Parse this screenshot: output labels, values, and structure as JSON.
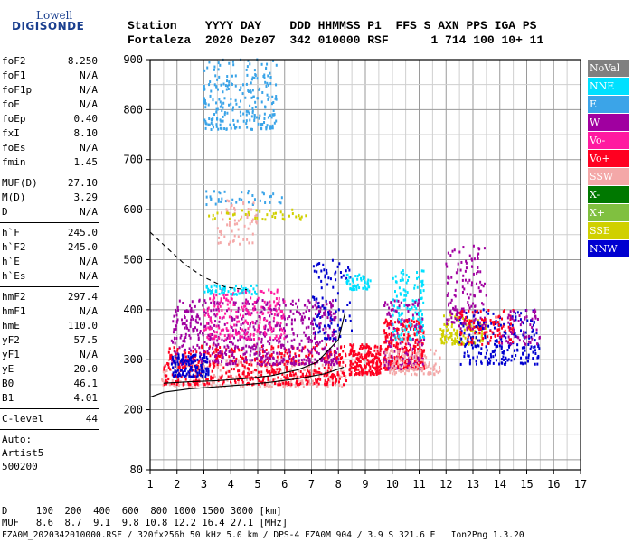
{
  "logo": {
    "line1": "Lowell",
    "line2": "DIGISONDE"
  },
  "header": {
    "line1": "Station    YYYY DAY    DDD HHMMSS P1  FFS S AXN PPS IGA PS",
    "line2": "Fortaleza  2020 Dez07  342 010000 RSF      1 714 100 10+ 11"
  },
  "params": {
    "group1": [
      {
        "name": "foF2",
        "value": "8.250"
      },
      {
        "name": "foF1",
        "value": "N/A"
      },
      {
        "name": "foF1p",
        "value": "N/A"
      },
      {
        "name": "foE",
        "value": "N/A"
      },
      {
        "name": "foEp",
        "value": "0.40"
      },
      {
        "name": "fxI",
        "value": "8.10"
      },
      {
        "name": "foEs",
        "value": "N/A"
      },
      {
        "name": "fmin",
        "value": "1.45"
      }
    ],
    "group2": [
      {
        "name": "MUF(D)",
        "value": "27.10"
      },
      {
        "name": "M(D)",
        "value": "3.29"
      },
      {
        "name": "D",
        "value": "N/A"
      }
    ],
    "group3": [
      {
        "name": "h`F",
        "value": "245.0"
      },
      {
        "name": "h`F2",
        "value": "245.0"
      },
      {
        "name": "h`E",
        "value": "N/A"
      },
      {
        "name": "h`Es",
        "value": "N/A"
      }
    ],
    "group4": [
      {
        "name": "hmF2",
        "value": "297.4"
      },
      {
        "name": "hmF1",
        "value": "N/A"
      },
      {
        "name": "hmE",
        "value": "110.0"
      },
      {
        "name": "yF2",
        "value": "57.5"
      },
      {
        "name": "yF1",
        "value": "N/A"
      },
      {
        "name": "yE",
        "value": "20.0"
      },
      {
        "name": "B0",
        "value": "46.1"
      },
      {
        "name": "B1",
        "value": "4.01"
      }
    ],
    "group5": [
      {
        "name": "C-level",
        "value": "44"
      }
    ]
  },
  "autoscale": {
    "line1": "Auto:",
    "line2": "Artist5",
    "line3": "500200"
  },
  "legend": [
    {
      "label": "NoVal",
      "color": "#808080"
    },
    {
      "label": "NNE",
      "color": "#00e0ff"
    },
    {
      "label": "E",
      "color": "#3ba4e8"
    },
    {
      "label": "W",
      "color": "#a000a0"
    },
    {
      "label": "Vo-",
      "color": "#ff1aa0"
    },
    {
      "label": "Vo+",
      "color": "#ff0020"
    },
    {
      "label": "SSW",
      "color": "#f4a8a8"
    },
    {
      "label": "X-",
      "color": "#007800"
    },
    {
      "label": "X+",
      "color": "#80c040"
    },
    {
      "label": "SSE",
      "color": "#d0d000"
    },
    {
      "label": "NNW",
      "color": "#0000d0"
    }
  ],
  "footer": {
    "line1": "D     100  200  400  600  800 1000 1500 3000 [km]",
    "line2": "MUF   8.6  8.7  9.1  9.8 10.8 12.2 16.4 27.1 [MHz]",
    "line3": "FZA0M_2020342010000.RSF / 320fx256h 50 kHz 5.0 km / DPS-4 FZA0M 904 / 3.9 S 321.6 E   Ion2Png 1.3.20"
  },
  "chart_data": {
    "type": "scatter",
    "xlim": [
      1,
      17
    ],
    "ylim": [
      80,
      900
    ],
    "x_ticks": [
      1,
      2,
      3,
      4,
      5,
      6,
      7,
      8,
      9,
      10,
      11,
      12,
      13,
      14,
      15,
      16,
      17
    ],
    "y_ticks": [
      80,
      200,
      300,
      400,
      500,
      600,
      700,
      800,
      900
    ],
    "x_unit": "MHz",
    "y_unit": "km",
    "grid": true,
    "clusters": [
      {
        "series": "SSW",
        "fmin": 1.4,
        "fmax": 8.3,
        "hmin": 245,
        "hmax": 300,
        "n": 260
      },
      {
        "series": "Vo+",
        "fmin": 1.5,
        "fmax": 8.3,
        "hmin": 250,
        "hmax": 330,
        "n": 520
      },
      {
        "series": "W",
        "fmin": 1.8,
        "fmax": 8.0,
        "hmin": 290,
        "hmax": 420,
        "n": 650
      },
      {
        "series": "NNW",
        "fmin": 1.8,
        "fmax": 3.2,
        "hmin": 265,
        "hmax": 310,
        "n": 130
      },
      {
        "series": "NNW",
        "fmin": 7.0,
        "fmax": 8.5,
        "hmin": 340,
        "hmax": 500,
        "n": 90
      },
      {
        "series": "Vo-",
        "fmin": 3.0,
        "fmax": 6.0,
        "hmin": 340,
        "hmax": 440,
        "n": 220
      },
      {
        "series": "NNE",
        "fmin": 3.0,
        "fmax": 5.0,
        "hmin": 430,
        "hmax": 450,
        "n": 60
      },
      {
        "series": "E",
        "fmin": 3.0,
        "fmax": 5.7,
        "hmin": 760,
        "hmax": 900,
        "n": 240
      },
      {
        "series": "E",
        "fmin": 3.0,
        "fmax": 6.0,
        "hmin": 610,
        "hmax": 640,
        "n": 40
      },
      {
        "series": "SSW",
        "fmin": 3.5,
        "fmax": 5.0,
        "hmin": 530,
        "hmax": 620,
        "n": 60
      },
      {
        "series": "SSE",
        "fmin": 3.0,
        "fmax": 6.8,
        "hmin": 580,
        "hmax": 600,
        "n": 40
      },
      {
        "series": "Vo+",
        "fmin": 8.4,
        "fmax": 9.6,
        "hmin": 270,
        "hmax": 330,
        "n": 200
      },
      {
        "series": "NNE",
        "fmin": 8.3,
        "fmax": 9.2,
        "hmin": 440,
        "hmax": 470,
        "n": 50
      },
      {
        "series": "Vo+",
        "fmin": 9.7,
        "fmax": 11.2,
        "hmin": 280,
        "hmax": 380,
        "n": 300
      },
      {
        "series": "NNE",
        "fmin": 10.0,
        "fmax": 11.2,
        "hmin": 340,
        "hmax": 480,
        "n": 120
      },
      {
        "series": "W",
        "fmin": 9.7,
        "fmax": 11.2,
        "hmin": 280,
        "hmax": 420,
        "n": 120
      },
      {
        "series": "SSW",
        "fmin": 9.7,
        "fmax": 11.8,
        "hmin": 270,
        "hmax": 320,
        "n": 120
      },
      {
        "series": "SSE",
        "fmin": 11.8,
        "fmax": 13.5,
        "hmin": 330,
        "hmax": 390,
        "n": 120
      },
      {
        "series": "W",
        "fmin": 12.0,
        "fmax": 13.5,
        "hmin": 360,
        "hmax": 530,
        "n": 150
      },
      {
        "series": "NNW",
        "fmin": 12.5,
        "fmax": 15.5,
        "hmin": 290,
        "hmax": 400,
        "n": 220
      },
      {
        "series": "Vo+",
        "fmin": 12.5,
        "fmax": 14.5,
        "hmin": 330,
        "hmax": 400,
        "n": 90
      },
      {
        "series": "W",
        "fmin": 14.0,
        "fmax": 15.5,
        "hmin": 330,
        "hmax": 400,
        "n": 60
      }
    ],
    "profile_curves": [
      {
        "style": "solid",
        "points": [
          [
            1,
            225
          ],
          [
            1.5,
            235
          ],
          [
            2.5,
            242
          ],
          [
            3.5,
            246
          ],
          [
            4.5,
            250
          ],
          [
            5.5,
            255
          ],
          [
            6.5,
            262
          ],
          [
            7.5,
            272
          ],
          [
            8.2,
            285
          ]
        ]
      },
      {
        "style": "solid",
        "points": [
          [
            1.5,
            253
          ],
          [
            2.5,
            256
          ],
          [
            3.5,
            258
          ],
          [
            4.5,
            262
          ],
          [
            5.5,
            268
          ],
          [
            6.5,
            280
          ],
          [
            7.2,
            295
          ],
          [
            8.0,
            340
          ],
          [
            8.25,
            395
          ]
        ]
      },
      {
        "style": "dashed",
        "points": [
          [
            1,
            555
          ],
          [
            1.6,
            525
          ],
          [
            2.3,
            490
          ],
          [
            3.0,
            465
          ],
          [
            3.8,
            445
          ],
          [
            4.6,
            440
          ]
        ]
      }
    ]
  }
}
